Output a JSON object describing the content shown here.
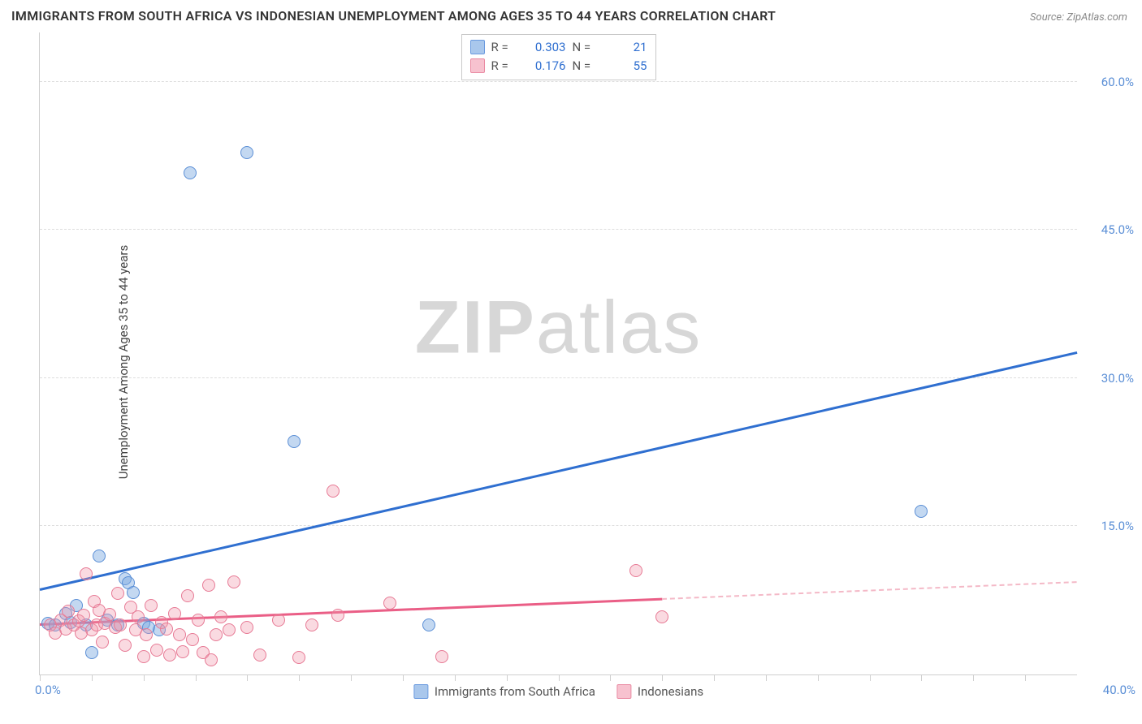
{
  "title": "IMMIGRANTS FROM SOUTH AFRICA VS INDONESIAN UNEMPLOYMENT AMONG AGES 35 TO 44 YEARS CORRELATION CHART",
  "source": "Source: ZipAtlas.com",
  "ylabel": "Unemployment Among Ages 35 to 44 years",
  "watermark_prefix": "ZIP",
  "watermark_suffix": "atlas",
  "chart": {
    "type": "scatter",
    "background_color": "#ffffff",
    "grid_color": "#dddddd",
    "axis_color": "#cfcfcf",
    "tick_label_color": "#5b8fd6",
    "xlim": [
      0,
      40
    ],
    "ylim": [
      0,
      65
    ],
    "xtick_positions": [
      0,
      2,
      4,
      6,
      8,
      10,
      12,
      14,
      16,
      18,
      20,
      22,
      24,
      26,
      28,
      30,
      32,
      34,
      36,
      38
    ],
    "xtick_labels": {
      "0": "0.0%",
      "40": "40.0%"
    },
    "ytick_positions": [
      15,
      30,
      45,
      60
    ],
    "ytick_labels": [
      "15.0%",
      "30.0%",
      "45.0%",
      "60.0%"
    ],
    "point_radius": 8,
    "series": [
      {
        "name": "Immigrants from South Africa",
        "color_fill": "rgba(122,169,225,0.45)",
        "color_stroke": "#5b8fd6",
        "trend_color": "#2f6fd0",
        "R": "0.303",
        "N": "21",
        "trend": {
          "x0": 0,
          "y0": 8.5,
          "x1": 40,
          "y1": 32.5,
          "dashed_after_x": null
        },
        "points": [
          [
            0.3,
            5.2
          ],
          [
            0.6,
            5.0
          ],
          [
            1.0,
            6.2
          ],
          [
            1.2,
            5.3
          ],
          [
            1.4,
            7.0
          ],
          [
            1.8,
            5.0
          ],
          [
            2.0,
            2.2
          ],
          [
            2.3,
            12.0
          ],
          [
            2.6,
            5.5
          ],
          [
            3.0,
            5.0
          ],
          [
            3.3,
            9.7
          ],
          [
            3.4,
            9.3
          ],
          [
            3.6,
            8.3
          ],
          [
            4.0,
            5.2
          ],
          [
            4.2,
            4.8
          ],
          [
            4.6,
            4.5
          ],
          [
            5.8,
            50.8
          ],
          [
            8.0,
            52.8
          ],
          [
            9.8,
            23.6
          ],
          [
            15.0,
            5.0
          ],
          [
            34.0,
            16.5
          ]
        ]
      },
      {
        "name": "Indonesians",
        "color_fill": "rgba(240,150,170,0.35)",
        "color_stroke": "#e77a95",
        "trend_color": "#ea5e86",
        "trend_dash_color": "#f4b9c7",
        "R": "0.176",
        "N": "55",
        "trend": {
          "x0": 0,
          "y0": 5.0,
          "x1": 40,
          "y1": 9.3,
          "dashed_after_x": 24
        },
        "points": [
          [
            0.4,
            5.0
          ],
          [
            0.6,
            4.2
          ],
          [
            0.8,
            5.5
          ],
          [
            1.0,
            4.6
          ],
          [
            1.1,
            6.4
          ],
          [
            1.3,
            5.0
          ],
          [
            1.5,
            5.4
          ],
          [
            1.6,
            4.2
          ],
          [
            1.7,
            6.0
          ],
          [
            1.8,
            10.2
          ],
          [
            2.0,
            4.5
          ],
          [
            2.1,
            7.4
          ],
          [
            2.2,
            5.0
          ],
          [
            2.3,
            6.5
          ],
          [
            2.4,
            3.3
          ],
          [
            2.5,
            5.2
          ],
          [
            2.7,
            6.1
          ],
          [
            2.9,
            4.8
          ],
          [
            3.0,
            8.2
          ],
          [
            3.1,
            5.0
          ],
          [
            3.3,
            3.0
          ],
          [
            3.5,
            6.8
          ],
          [
            3.7,
            4.5
          ],
          [
            3.8,
            5.8
          ],
          [
            4.0,
            1.8
          ],
          [
            4.1,
            4.0
          ],
          [
            4.3,
            7.0
          ],
          [
            4.5,
            2.5
          ],
          [
            4.7,
            5.3
          ],
          [
            4.9,
            4.6
          ],
          [
            5.0,
            2.0
          ],
          [
            5.2,
            6.2
          ],
          [
            5.4,
            4.0
          ],
          [
            5.5,
            2.3
          ],
          [
            5.7,
            8.0
          ],
          [
            5.9,
            3.5
          ],
          [
            6.1,
            5.5
          ],
          [
            6.3,
            2.2
          ],
          [
            6.5,
            9.0
          ],
          [
            6.6,
            1.5
          ],
          [
            6.8,
            4.0
          ],
          [
            7.0,
            5.8
          ],
          [
            7.3,
            4.5
          ],
          [
            7.5,
            9.4
          ],
          [
            8.0,
            4.8
          ],
          [
            8.5,
            2.0
          ],
          [
            9.2,
            5.5
          ],
          [
            10.0,
            1.7
          ],
          [
            10.5,
            5.0
          ],
          [
            11.3,
            18.6
          ],
          [
            11.5,
            6.0
          ],
          [
            13.5,
            7.2
          ],
          [
            15.5,
            1.8
          ],
          [
            23.0,
            10.5
          ],
          [
            24.0,
            5.8
          ]
        ]
      }
    ]
  },
  "legend_bottom": [
    {
      "swatch": "blue",
      "label": "Immigrants from South Africa"
    },
    {
      "swatch": "pink",
      "label": "Indonesians"
    }
  ]
}
